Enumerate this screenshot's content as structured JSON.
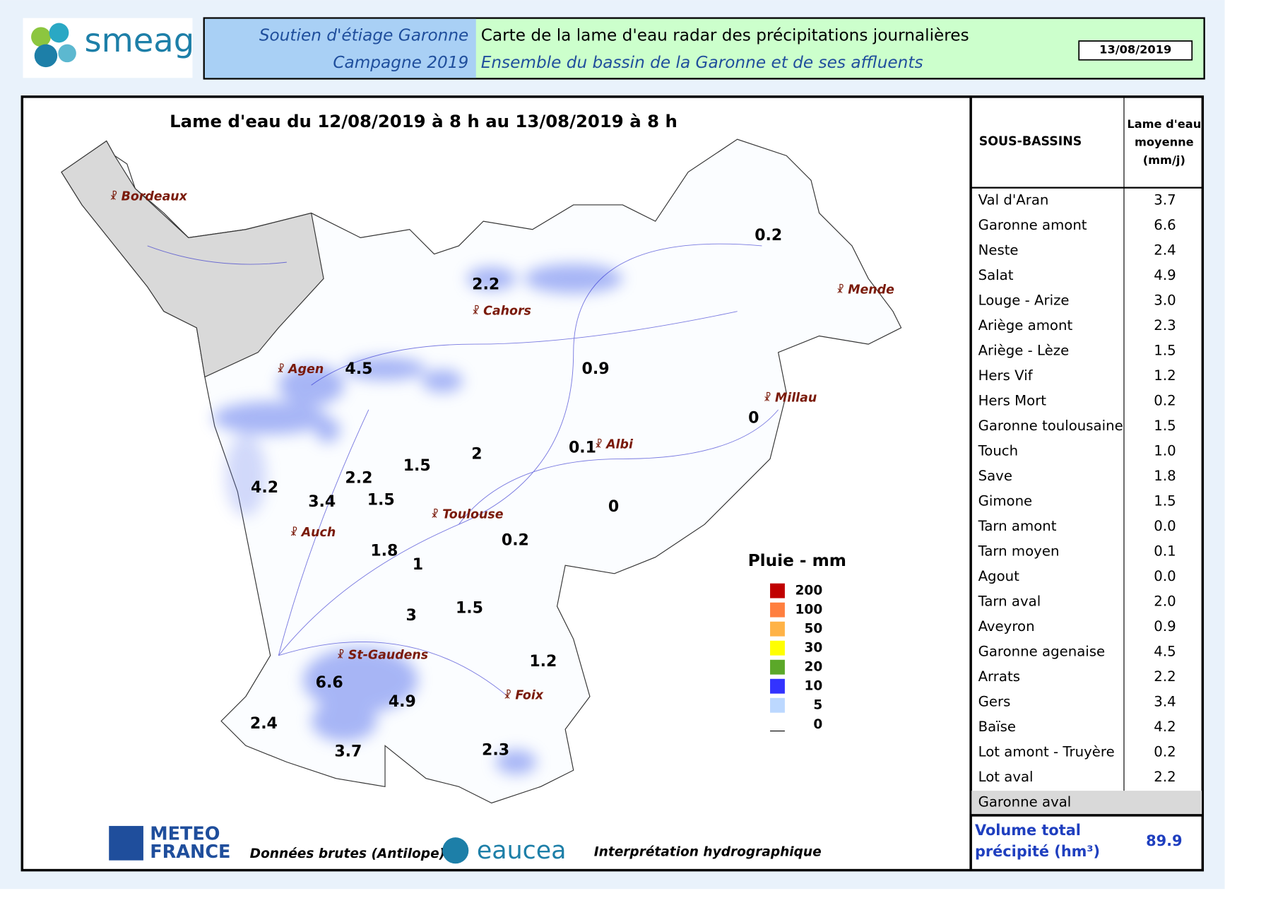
{
  "header": {
    "logo": "smeag",
    "left": [
      "Soutien d'étiage Garonne",
      "Campagne 2019"
    ],
    "right": [
      "Carte de la lame d'eau radar des précipitations journalières",
      "Ensemble du bassin de la Garonne et de ses affluents"
    ],
    "date": "13/08/2019"
  },
  "map": {
    "title": "Lame d'eau du 12/08/2019 à 8 h au 13/08/2019 à 8 h",
    "cities": [
      "Bordeaux",
      "Cahors",
      "Mende",
      "Agen",
      "Millau",
      "Albi",
      "Toulouse",
      "Auch",
      "St-Gaudens",
      "Foix"
    ],
    "basin_labels": [
      "0.2",
      "2.2",
      "4.5",
      "0.9",
      "0",
      "0.1",
      "2",
      "1.5",
      "4.2",
      "3.4",
      "2.2",
      "1.5",
      "0",
      "0.2",
      "1.8",
      "1",
      "3",
      "1.5",
      "1.2",
      "6.6",
      "4.9",
      "2.4",
      "3.7",
      "2.3"
    ],
    "legend": {
      "title": "Pluie - mm",
      "labels": [
        "200",
        "100",
        "50",
        "30",
        "20",
        "10",
        "5",
        "0"
      ]
    }
  },
  "table": {
    "headers": [
      "SOUS-BASSINS",
      "Lame d'eau moyenne (mm/j)"
    ],
    "rows": [
      [
        "Val d'Aran",
        "3.7"
      ],
      [
        "Garonne amont",
        "6.6"
      ],
      [
        "Neste",
        "2.4"
      ],
      [
        "Salat",
        "4.9"
      ],
      [
        "Louge - Arize",
        "3.0"
      ],
      [
        "Ariège amont",
        "2.3"
      ],
      [
        "Ariège - Lèze",
        "1.5"
      ],
      [
        "Hers Vif",
        "1.2"
      ],
      [
        "Hers Mort",
        "0.2"
      ],
      [
        "Garonne toulousaine",
        "1.5"
      ],
      [
        "Touch",
        "1.0"
      ],
      [
        "Save",
        "1.8"
      ],
      [
        "Gimone",
        "1.5"
      ],
      [
        "Tarn amont",
        "0.0"
      ],
      [
        "Tarn moyen",
        "0.1"
      ],
      [
        "Agout",
        "0.0"
      ],
      [
        "Tarn aval",
        "2.0"
      ],
      [
        "Aveyron",
        "0.9"
      ],
      [
        "Garonne agenaise",
        "4.5"
      ],
      [
        "Arrats",
        "2.2"
      ],
      [
        "Gers",
        "3.4"
      ],
      [
        "Baïse",
        "4.2"
      ],
      [
        "Lot amont - Truyère",
        "0.2"
      ],
      [
        "Lot aval",
        "2.2"
      ],
      [
        "Garonne aval"
      ]
    ],
    "total_label": [
      "Volume total",
      "précipité (hm³)"
    ],
    "total_value": "89.9"
  },
  "footer": {
    "meteo": [
      "METEO",
      "FRANCE"
    ],
    "source": "Données brutes (Antilope)",
    "eaucea": "eaucea",
    "interpretation": "Interprétation hydrographique"
  }
}
